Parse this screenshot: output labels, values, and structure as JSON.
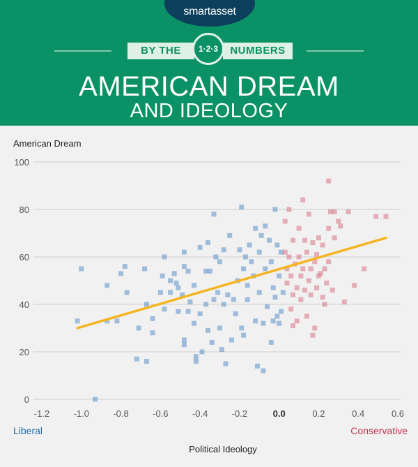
{
  "brand": {
    "logo": "smartasset"
  },
  "header": {
    "ribbon_left": "BY THE",
    "ribbon_badge": "1·2·3",
    "ribbon_right": "NUMBERS",
    "title_line1": "AMERICAN DREAM",
    "title_line2": "AND IDEOLOGY"
  },
  "colors": {
    "header_bg": "#0a9165",
    "liberal": "#5b8fc7",
    "conservative": "#d77484",
    "trend": "#f5b521",
    "liberal_label": "#1d6aa8",
    "conservative_label": "#c0334d"
  },
  "chart_data": {
    "type": "scatter",
    "ylabel": "American Dream",
    "xlabel": "Political Ideology",
    "x_left_label": "Liberal",
    "x_right_label": "Conservative",
    "xlim": [
      -1.2,
      0.6
    ],
    "ylim": [
      0,
      100
    ],
    "x_ticks": [
      "-1.2",
      "-1.0",
      "-0.8",
      "-0.6",
      "-0.4",
      "-0.2",
      "0.0",
      "0.2",
      "0.4",
      "0.6"
    ],
    "y_ticks": [
      "0",
      "20",
      "40",
      "60",
      "80",
      "100"
    ],
    "grid": true,
    "trend_line": {
      "x": [
        -1.02,
        0.54
      ],
      "y": [
        30,
        68
      ]
    },
    "series": [
      {
        "color": "liberal",
        "points": [
          [
            -0.93,
            0
          ],
          [
            -1.02,
            33
          ],
          [
            -1.0,
            55
          ],
          [
            -0.87,
            33
          ],
          [
            -0.87,
            48
          ],
          [
            -0.82,
            33
          ],
          [
            -0.8,
            53
          ],
          [
            -0.78,
            56
          ],
          [
            -0.77,
            45
          ],
          [
            -0.72,
            17
          ],
          [
            -0.71,
            30
          ],
          [
            -0.68,
            55
          ],
          [
            -0.67,
            40
          ],
          [
            -0.67,
            16
          ],
          [
            -0.64,
            28
          ],
          [
            -0.64,
            34
          ],
          [
            -0.6,
            45
          ],
          [
            -0.59,
            52
          ],
          [
            -0.58,
            38
          ],
          [
            -0.58,
            60
          ],
          [
            -0.55,
            50
          ],
          [
            -0.55,
            45
          ],
          [
            -0.53,
            53
          ],
          [
            -0.52,
            49
          ],
          [
            -0.51,
            47
          ],
          [
            -0.51,
            37
          ],
          [
            -0.49,
            44
          ],
          [
            -0.48,
            62
          ],
          [
            -0.48,
            56
          ],
          [
            -0.48,
            25
          ],
          [
            -0.48,
            23
          ],
          [
            -0.46,
            54
          ],
          [
            -0.46,
            37
          ],
          [
            -0.45,
            41
          ],
          [
            -0.43,
            32
          ],
          [
            -0.43,
            48
          ],
          [
            -0.42,
            18
          ],
          [
            -0.42,
            16
          ],
          [
            -0.4,
            64
          ],
          [
            -0.4,
            36
          ],
          [
            -0.39,
            20
          ],
          [
            -0.37,
            54
          ],
          [
            -0.37,
            40
          ],
          [
            -0.36,
            66
          ],
          [
            -0.36,
            29
          ],
          [
            -0.35,
            54
          ],
          [
            -0.34,
            24
          ],
          [
            -0.33,
            42
          ],
          [
            -0.33,
            78
          ],
          [
            -0.32,
            60
          ],
          [
            -0.31,
            45
          ],
          [
            -0.3,
            30
          ],
          [
            -0.3,
            58
          ],
          [
            -0.29,
            21
          ],
          [
            -0.28,
            63
          ],
          [
            -0.28,
            40
          ],
          [
            -0.27,
            15
          ],
          [
            -0.26,
            44
          ],
          [
            -0.25,
            69
          ],
          [
            -0.24,
            25
          ],
          [
            -0.23,
            42
          ],
          [
            -0.22,
            36
          ],
          [
            -0.21,
            50
          ],
          [
            -0.2,
            63
          ],
          [
            -0.19,
            30
          ],
          [
            -0.19,
            81
          ],
          [
            -0.18,
            55
          ],
          [
            -0.18,
            27
          ],
          [
            -0.17,
            60
          ],
          [
            -0.16,
            42
          ],
          [
            -0.16,
            48
          ],
          [
            -0.15,
            65
          ],
          [
            -0.14,
            58
          ],
          [
            -0.13,
            52
          ],
          [
            -0.12,
            33
          ],
          [
            -0.12,
            72
          ],
          [
            -0.11,
            14
          ],
          [
            -0.1,
            62
          ],
          [
            -0.1,
            45
          ],
          [
            -0.09,
            69
          ],
          [
            -0.08,
            12
          ],
          [
            -0.08,
            32
          ],
          [
            -0.07,
            55
          ],
          [
            -0.07,
            73
          ],
          [
            -0.06,
            39
          ],
          [
            -0.05,
            67
          ],
          [
            -0.04,
            58
          ],
          [
            -0.04,
            24
          ],
          [
            -0.03,
            33
          ],
          [
            -0.03,
            47
          ],
          [
            -0.02,
            80
          ],
          [
            -0.02,
            43
          ],
          [
            -0.01,
            35
          ],
          [
            -0.01,
            65
          ],
          [
            0.0,
            52
          ],
          [
            0.0,
            32
          ],
          [
            0.01,
            37
          ],
          [
            0.01,
            62
          ],
          [
            0.02,
            45
          ]
        ]
      },
      {
        "color": "conservative",
        "points": [
          [
            0.03,
            62
          ],
          [
            0.03,
            75
          ],
          [
            0.04,
            55
          ],
          [
            0.04,
            49
          ],
          [
            0.05,
            80
          ],
          [
            0.05,
            60
          ],
          [
            0.06,
            38
          ],
          [
            0.06,
            52
          ],
          [
            0.07,
            67
          ],
          [
            0.07,
            31
          ],
          [
            0.07,
            44
          ],
          [
            0.08,
            57
          ],
          [
            0.09,
            33
          ],
          [
            0.09,
            47
          ],
          [
            0.1,
            72
          ],
          [
            0.1,
            60
          ],
          [
            0.11,
            42
          ],
          [
            0.11,
            52
          ],
          [
            0.12,
            55
          ],
          [
            0.12,
            84
          ],
          [
            0.13,
            67
          ],
          [
            0.13,
            46
          ],
          [
            0.14,
            35
          ],
          [
            0.14,
            62
          ],
          [
            0.15,
            78
          ],
          [
            0.15,
            50
          ],
          [
            0.16,
            44
          ],
          [
            0.16,
            55
          ],
          [
            0.17,
            66
          ],
          [
            0.17,
            27
          ],
          [
            0.18,
            58
          ],
          [
            0.18,
            30
          ],
          [
            0.19,
            47
          ],
          [
            0.19,
            61
          ],
          [
            0.2,
            68
          ],
          [
            0.2,
            52
          ],
          [
            0.21,
            53
          ],
          [
            0.22,
            65
          ],
          [
            0.22,
            43
          ],
          [
            0.23,
            55
          ],
          [
            0.23,
            40
          ],
          [
            0.24,
            49
          ],
          [
            0.25,
            92
          ],
          [
            0.25,
            72
          ],
          [
            0.25,
            58
          ],
          [
            0.26,
            79
          ],
          [
            0.27,
            46
          ],
          [
            0.28,
            79
          ],
          [
            0.28,
            68
          ],
          [
            0.3,
            75
          ],
          [
            0.31,
            73
          ],
          [
            0.33,
            41
          ],
          [
            0.35,
            79
          ],
          [
            0.38,
            48
          ],
          [
            0.43,
            55
          ],
          [
            0.49,
            77
          ],
          [
            0.54,
            77
          ]
        ]
      }
    ]
  }
}
